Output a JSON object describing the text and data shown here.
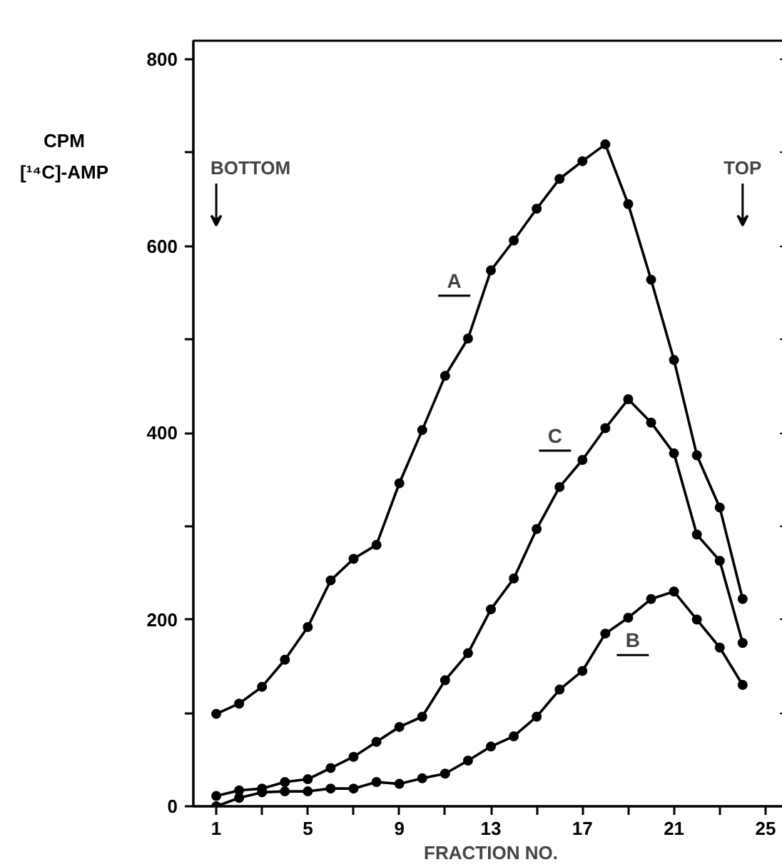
{
  "chart_data": {
    "type": "line",
    "xlabel": "FRACTION NO.",
    "ylabel": "CPM\n[¹⁴C]-AMP",
    "x": [
      1,
      2,
      3,
      4,
      5,
      6,
      7,
      8,
      9,
      10,
      11,
      12,
      13,
      14,
      15,
      16,
      17,
      18,
      19,
      20,
      21,
      22,
      23,
      24
    ],
    "series": [
      {
        "name": "A",
        "color": "#000000",
        "values": [
          99,
          110,
          128,
          157,
          192,
          242,
          265,
          280,
          346,
          403,
          461,
          501,
          574,
          606,
          640,
          672,
          691,
          709,
          645,
          564,
          478,
          376,
          320,
          222
        ]
      },
      {
        "name": "B",
        "color": "#000000",
        "values": [
          0,
          9,
          15,
          16,
          16,
          19,
          19,
          26,
          24,
          30,
          35,
          49,
          64,
          75,
          96,
          125,
          145,
          185,
          202,
          222,
          230,
          200,
          170,
          130
        ]
      },
      {
        "name": "C",
        "color": "#000000",
        "values": [
          11,
          17,
          19,
          26,
          29,
          41,
          53,
          69,
          85,
          96,
          135,
          164,
          211,
          244,
          297,
          342,
          371,
          405,
          436,
          411,
          378,
          291,
          263,
          175
        ]
      }
    ],
    "xlim": [
      0,
      26
    ],
    "ylim": [
      0,
      820
    ],
    "xticks": [
      1,
      {
        "value": 3,
        "label": null
      },
      5,
      {
        "value": 7,
        "label": null
      },
      9,
      {
        "value": 11,
        "label": null
      },
      13,
      {
        "value": 15,
        "label": null
      },
      17,
      {
        "value": 19,
        "label": null
      },
      21,
      {
        "value": 23,
        "label": null
      },
      25
    ],
    "yticks": [
      0,
      {
        "value": 100,
        "label": null
      },
      200,
      {
        "value": 300,
        "label": null
      },
      400,
      {
        "value": 500,
        "label": null
      },
      600,
      {
        "value": 700,
        "label": null
      },
      800
    ],
    "annotations": [
      "BOTTOM",
      "TOP"
    ],
    "marker": "circle",
    "line_style": "solid",
    "grid": false
  }
}
